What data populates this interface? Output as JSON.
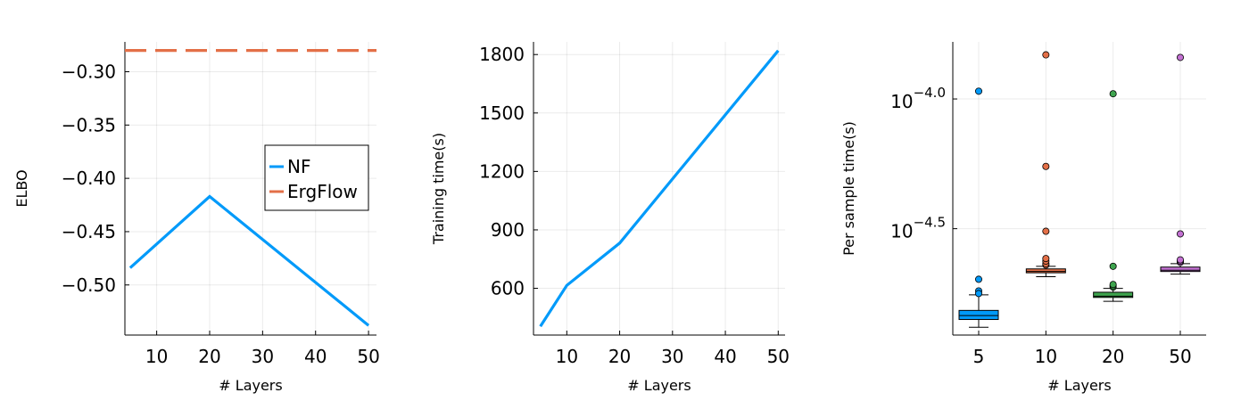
{
  "colors": {
    "nf": "#009AFA",
    "ergflow": "#E36F47",
    "box5": "#009AFA",
    "box10": "#E36F47",
    "box20": "#3EA44E",
    "box50": "#C371D2"
  },
  "chart_data": [
    {
      "type": "line",
      "xlabel": "# Layers",
      "ylabel": "ELBO",
      "xlim": [
        4,
        51.5
      ],
      "ylim": [
        -0.547,
        -0.272
      ],
      "xticks": [
        10,
        20,
        30,
        40,
        50
      ],
      "xtick_labels": [
        "10",
        "20",
        "30",
        "40",
        "50"
      ],
      "yticks": [
        -0.3,
        -0.35,
        -0.4,
        -0.45,
        -0.5
      ],
      "ytick_labels": [
        "−0.30",
        "−0.35",
        "−0.40",
        "−0.45",
        "−0.50"
      ],
      "grid": true,
      "legend": "right",
      "series": [
        {
          "name": "NF",
          "style": "solid",
          "x": [
            5,
            20,
            50
          ],
          "y": [
            -0.484,
            -0.417,
            -0.538
          ]
        },
        {
          "name": "ErgFlow",
          "style": "dashed",
          "x": [
            4,
            51.5
          ],
          "y": [
            -0.28,
            -0.28
          ]
        }
      ]
    },
    {
      "type": "line",
      "xlabel": "# Layers",
      "ylabel": "Training time(s)",
      "xlim": [
        3.7,
        51.3
      ],
      "ylim": [
        360,
        1865
      ],
      "xticks": [
        10,
        20,
        30,
        40,
        50
      ],
      "xtick_labels": [
        "10",
        "20",
        "30",
        "40",
        "50"
      ],
      "yticks": [
        600,
        900,
        1200,
        1500,
        1800
      ],
      "ytick_labels": [
        "600",
        "900",
        "1200",
        "1500",
        "1800"
      ],
      "grid": true,
      "series": [
        {
          "x": [
            5,
            10,
            20,
            50
          ],
          "y": [
            405,
            615,
            832,
            1820
          ]
        }
      ]
    },
    {
      "type": "box",
      "xlabel": "# Layers",
      "ylabel": "Per sample time(s)",
      "categories": [
        "5",
        "10",
        "20",
        "50"
      ],
      "log_scale": true,
      "ylim_log10": [
        -4.91,
        -3.78
      ],
      "yticks_log10": [
        -4.0,
        -4.5
      ],
      "ytick_labels": [
        {
          "base": "10",
          "exp": "−4.0"
        },
        {
          "base": "10",
          "exp": "−4.5"
        }
      ],
      "grid": true,
      "boxes": [
        {
          "category": "5",
          "whisker_low": -4.88,
          "q1": -4.85,
          "median": -4.835,
          "q3": -4.815,
          "whisker_high": -4.755,
          "outliers": [
            -4.74,
            -4.75,
            -4.695,
            -3.97
          ]
        },
        {
          "category": "10",
          "whisker_low": -4.685,
          "q1": -4.67,
          "median": -4.665,
          "q3": -4.655,
          "whisker_high": -4.645,
          "outliers": [
            -4.64,
            -4.635,
            -4.625,
            -4.615,
            -4.51,
            -4.26,
            -3.83
          ]
        },
        {
          "category": "20",
          "whisker_low": -4.78,
          "q1": -4.765,
          "median": -4.76,
          "q3": -4.745,
          "whisker_high": -4.73,
          "outliers": [
            -4.725,
            -4.72,
            -4.715,
            -4.645,
            -3.98
          ]
        },
        {
          "category": "50",
          "whisker_low": -4.675,
          "q1": -4.665,
          "median": -4.66,
          "q3": -4.648,
          "whisker_high": -4.635,
          "outliers": [
            -4.63,
            -4.625,
            -4.62,
            -4.52,
            -3.84
          ]
        }
      ]
    }
  ]
}
